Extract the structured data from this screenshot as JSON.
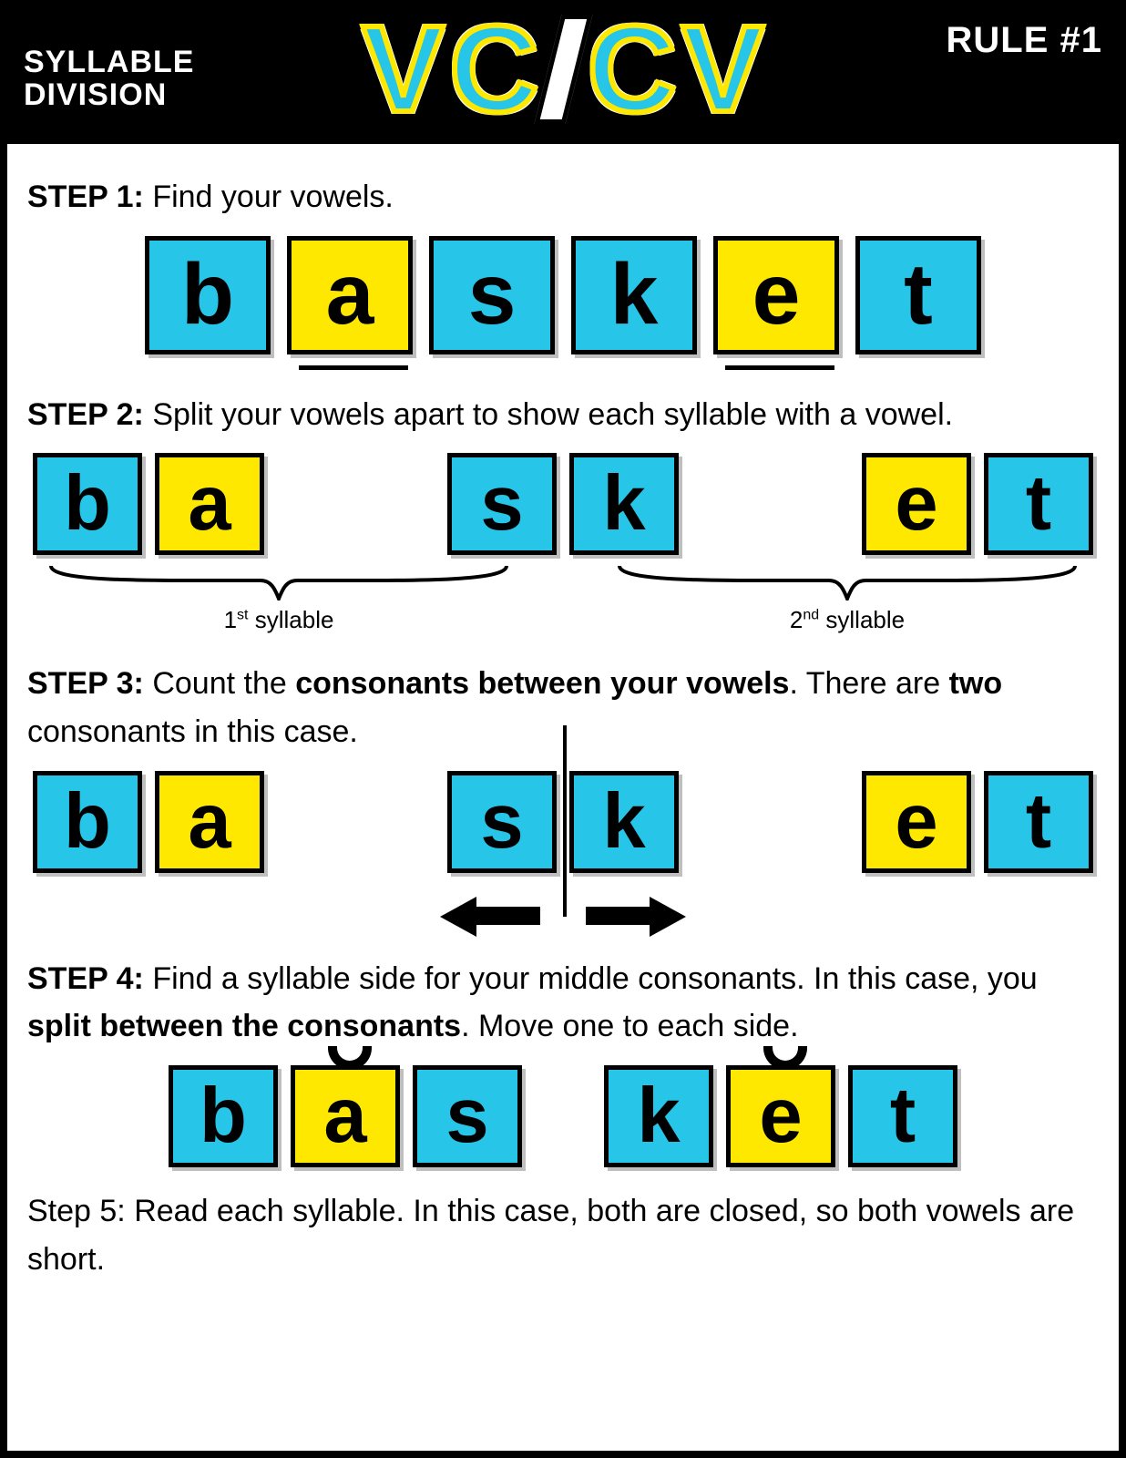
{
  "colors": {
    "consonant_bg": "#27c5e8",
    "vowel_bg": "#ffe800",
    "tile_border": "#000000",
    "page_bg": "#ffffff",
    "header_bg": "#000000"
  },
  "header": {
    "topleft_line1": "SYLLABLE",
    "topleft_line2": "DIVISION",
    "title_letters": [
      "V",
      "C",
      "/",
      "C",
      "V"
    ],
    "topright": "RULE #1"
  },
  "step1": {
    "label": "STEP 1:",
    "text": "Find your vowels.",
    "tiles": [
      {
        "letter": "b",
        "type": "consonant"
      },
      {
        "letter": "a",
        "type": "vowel",
        "underline": true
      },
      {
        "letter": "s",
        "type": "consonant"
      },
      {
        "letter": "k",
        "type": "consonant"
      },
      {
        "letter": "e",
        "type": "vowel",
        "underline": true
      },
      {
        "letter": "t",
        "type": "consonant"
      }
    ]
  },
  "step2": {
    "label": "STEP 2:",
    "text": "Split your vowels apart to show each syllable with a vowel.",
    "groups": [
      [
        {
          "letter": "b",
          "type": "consonant"
        },
        {
          "letter": "a",
          "type": "vowel"
        }
      ],
      [
        {
          "letter": "s",
          "type": "consonant"
        },
        {
          "letter": "k",
          "type": "consonant"
        }
      ],
      [
        {
          "letter": "e",
          "type": "vowel"
        },
        {
          "letter": "t",
          "type": "consonant"
        }
      ]
    ],
    "brace_left_ord": "1",
    "brace_left_sup": "st",
    "brace_word": "syllable",
    "brace_right_ord": "2",
    "brace_right_sup": "nd"
  },
  "step3": {
    "label": "STEP 3:",
    "text_a": "Count the ",
    "bold1": "consonants between your vowels",
    "text_b": ". There are ",
    "bold2": "two",
    "text_c": " consonants in this case.",
    "groups": [
      [
        {
          "letter": "b",
          "type": "consonant"
        },
        {
          "letter": "a",
          "type": "vowel"
        }
      ],
      [
        {
          "letter": "s",
          "type": "consonant"
        },
        {
          "letter": "k",
          "type": "consonant"
        }
      ],
      [
        {
          "letter": "e",
          "type": "vowel"
        },
        {
          "letter": "t",
          "type": "consonant"
        }
      ]
    ]
  },
  "step4": {
    "label": "STEP 4:",
    "text_a": "Find a syllable side for your middle consonants. In this case, you ",
    "bold1": "split between the consonants",
    "text_b": ". Move one to each side.",
    "groups": [
      [
        {
          "letter": "b",
          "type": "consonant"
        },
        {
          "letter": "a",
          "type": "vowel",
          "breve": true
        },
        {
          "letter": "s",
          "type": "consonant"
        }
      ],
      [
        {
          "letter": "k",
          "type": "consonant"
        },
        {
          "letter": "e",
          "type": "vowel",
          "breve": true
        },
        {
          "letter": "t",
          "type": "consonant"
        }
      ]
    ]
  },
  "step5": {
    "label": "Step 5:",
    "text": "Read each syllable. In this case, both are closed, so both vowels are short."
  }
}
